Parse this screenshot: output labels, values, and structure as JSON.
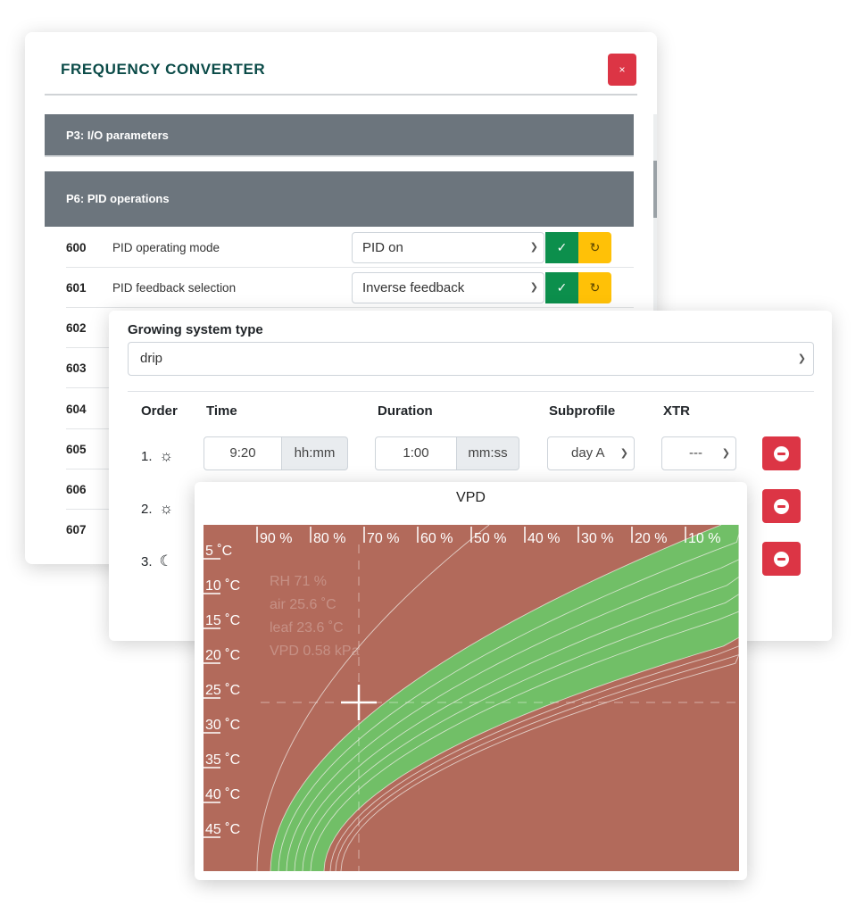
{
  "frequency_converter": {
    "title": "FREQUENCY CONVERTER",
    "close_label": "×",
    "sections": [
      {
        "label": "P3: I/O parameters"
      },
      {
        "label": "P6: PID operations"
      }
    ],
    "rows": [
      {
        "num": "600",
        "label": "PID operating mode",
        "value": "PID on"
      },
      {
        "num": "601",
        "label": "PID feedback selection",
        "value": "Inverse feedback"
      },
      {
        "num": "602"
      },
      {
        "num": "603"
      },
      {
        "num": "604"
      },
      {
        "num": "605"
      },
      {
        "num": "606"
      },
      {
        "num": "607"
      }
    ],
    "apply_glyph": "✓",
    "reset_glyph": "↻"
  },
  "growing_system": {
    "label": "Growing system type",
    "value": "drip",
    "headers": {
      "order": "Order",
      "time": "Time",
      "duration": "Duration",
      "subprofile": "Subprofile",
      "xtr": "XTR"
    },
    "rows": [
      {
        "order": "1.",
        "icon": "sun-icon",
        "icon_glyph": "☼",
        "time": "9:20",
        "time_unit": "hh:mm",
        "duration": "1:00",
        "duration_unit": "mm:ss",
        "subprofile": "day A",
        "xtr": "---"
      },
      {
        "order": "2.",
        "icon": "sun-icon",
        "icon_glyph": "☼"
      },
      {
        "order": "3.",
        "icon": "moon-icon",
        "icon_glyph": "☾"
      }
    ]
  },
  "vpd": {
    "title": "VPD",
    "readout": {
      "rh": "RH 71 %",
      "air": "air 25.6 ˚C",
      "leaf": "leaf 23.6 ˚C",
      "vpd": "VPD 0.58 kPa"
    },
    "colors": {
      "out_of_range": "#b26a5b",
      "in_range": "#71bf67",
      "line": "#f2efe9"
    },
    "chart_data": {
      "type": "area",
      "title": "VPD",
      "rh_ticks": [
        "90 %",
        "80 %",
        "70 %",
        "60 %",
        "50 %",
        "40 %",
        "30 %",
        "20 %",
        "10 %"
      ],
      "temp_ticks": [
        "5 ˚C",
        "10 ˚C",
        "15 ˚C",
        "20 ˚C",
        "25 ˚C",
        "30 ˚C",
        "35 ˚C",
        "40 ˚C",
        "45 ˚C"
      ],
      "cursor": {
        "rh": 71,
        "temp": 25.6
      }
    }
  }
}
